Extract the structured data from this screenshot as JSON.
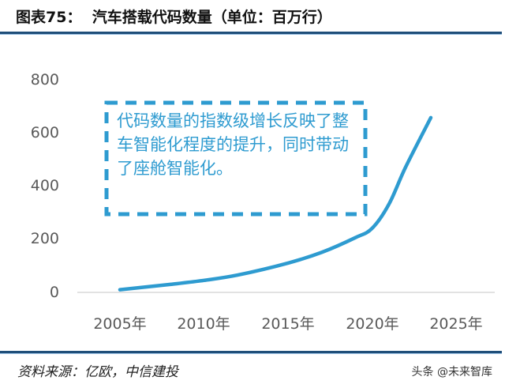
{
  "header": {
    "figure_label": "图表75：",
    "title": "汽车搭载代码数量（单位：百万行）"
  },
  "footer": {
    "source": "资料来源：亿欧，中信建投",
    "watermark": "头条 @未来智库"
  },
  "annotation": {
    "text": "代码数量的指数级增长反映了整车智能化程度的提升，同时带动了座舱智能化。"
  },
  "colors": {
    "line": "#2e9bd0",
    "annotation_border": "#2e9bd0",
    "rule": "#1f4e79",
    "axis_text": "#595959",
    "gridline": "#d9d9d9"
  },
  "chart_data": {
    "type": "line",
    "title": "汽车搭载代码数量（单位：百万行）",
    "xlabel": "",
    "ylabel": "",
    "categories": [
      "2005年",
      "2010年",
      "2015年",
      "2020年",
      "2025年"
    ],
    "y_ticks": [
      "0",
      "200",
      "400",
      "600",
      "800"
    ],
    "ylim": [
      0,
      800
    ],
    "grid": false,
    "legend": "none",
    "series": [
      {
        "name": "汽车搭载代码数量",
        "x": [
          2005,
          2008,
          2010,
          2012,
          2015,
          2017,
          2019,
          2020,
          2021,
          2022,
          2023.5
        ],
        "values": [
          10,
          30,
          45,
          65,
          110,
          150,
          205,
          240,
          330,
          470,
          655
        ]
      }
    ],
    "annotations": [
      "代码数量的指数级增长反映了整车智能化程度的提升，同时带动了座舱智能化。"
    ]
  }
}
